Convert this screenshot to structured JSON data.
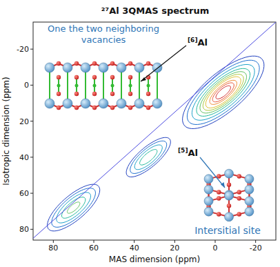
{
  "chart_data": {
    "type": "contour",
    "title": "²⁷Al 3QMAS spectrum",
    "x_label": "MAS dimension (ppm)",
    "y_label": "Isotropic dimension (ppm)",
    "xlim": [
      90,
      -30
    ],
    "ylim": [
      86,
      -35
    ],
    "xticks": [
      80,
      60,
      40,
      20,
      0,
      -20
    ],
    "yticks": [
      -20,
      0,
      20,
      40,
      60,
      80
    ],
    "diagonal": {
      "x": [
        90,
        -30
      ],
      "y": [
        85,
        -35
      ]
    },
    "contour_levels": [
      0.04,
      0.08,
      0.15,
      0.25,
      0.35,
      0.45,
      0.55,
      0.7,
      0.8,
      0.9
    ],
    "peaks": [
      {
        "x": -4,
        "y": 4,
        "amplitude": 1,
        "sigma_along": 10.5,
        "sigma_across": 4
      },
      {
        "x": 33,
        "y": 40,
        "amplitude": 0.35,
        "sigma_along": 7,
        "sigma_across": 2.5
      },
      {
        "x": 70,
        "y": 68,
        "amplitude": 0.4,
        "sigma_along": 8,
        "sigma_across": 3
      }
    ],
    "annotations": [
      {
        "text": "One the two neighboring vacancies"
      },
      {
        "text": "[6]Al"
      },
      {
        "text": "[5]Al"
      },
      {
        "text": "Intersitial site"
      }
    ]
  }
}
